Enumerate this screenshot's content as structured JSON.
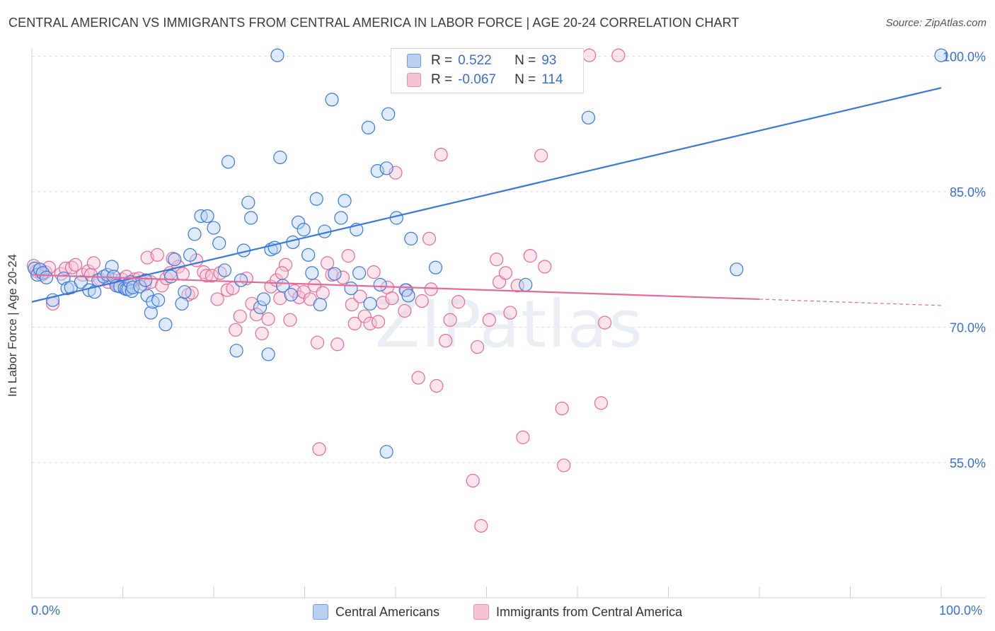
{
  "title": "CENTRAL AMERICAN VS IMMIGRANTS FROM CENTRAL AMERICA IN LABOR FORCE | AGE 20-24 CORRELATION CHART",
  "source": "Source: ZipAtlas.com",
  "watermark": "ZIPatlas",
  "legend": {
    "r_label": "R =",
    "n_label": "N =",
    "series1": {
      "r": "0.522",
      "n": "93"
    },
    "series2": {
      "r": "-0.067",
      "n": "114"
    }
  },
  "bottom_legend": {
    "series1": "Central Americans",
    "series2": "Immigrants from Central America"
  },
  "colors": {
    "blue": "#3a78d8",
    "blue_fill": "#b9d0f3",
    "pink": "#e46a9a",
    "pink_fill": "#f6c3d5",
    "axis_text": "#3a6fd0"
  },
  "chart_data": {
    "type": "scatter",
    "title": "CENTRAL AMERICAN VS IMMIGRANTS FROM CENTRAL AMERICA IN LABOR FORCE | AGE 20-24 CORRELATION CHART",
    "xlabel": "",
    "ylabel": "In Labor Force | Age 20-24",
    "xlim": [
      0,
      100
    ],
    "ylim": [
      40,
      102
    ],
    "x_tick_labels": [
      "0.0%",
      "100.0%"
    ],
    "y_ticks": [
      55,
      70,
      85,
      100
    ],
    "y_tick_labels": [
      "55.0%",
      "70.0%",
      "85.0%",
      "100.0%"
    ],
    "grid": true,
    "legend_position": "top-center",
    "series": [
      {
        "name": "Central Americans",
        "color": "#3a78d8",
        "r": 0.522,
        "n": 93,
        "trend": {
          "x": [
            0,
            100
          ],
          "y": [
            72.8,
            96.5
          ]
        },
        "points": [
          [
            0.3,
            76.5
          ],
          [
            0.6,
            75.8
          ],
          [
            0.9,
            76.4
          ],
          [
            1.2,
            76.0
          ],
          [
            1.6,
            75.5
          ],
          [
            2.3,
            73.0
          ],
          [
            3.5,
            75.4
          ],
          [
            3.9,
            74.3
          ],
          [
            4.3,
            74.4
          ],
          [
            5.4,
            75.0
          ],
          [
            6.3,
            74.1
          ],
          [
            6.9,
            73.9
          ],
          [
            7.3,
            75.2
          ],
          [
            7.9,
            75.6
          ],
          [
            8.3,
            75.8
          ],
          [
            8.8,
            76.7
          ],
          [
            9.0,
            75.6
          ],
          [
            9.3,
            74.6
          ],
          [
            9.7,
            74.5
          ],
          [
            10.2,
            74.3
          ],
          [
            10.4,
            74.2
          ],
          [
            10.6,
            74.2
          ],
          [
            10.8,
            75.0
          ],
          [
            11.0,
            74.0
          ],
          [
            11.1,
            74.4
          ],
          [
            11.9,
            74.5
          ],
          [
            12.5,
            75.2
          ],
          [
            12.7,
            73.5
          ],
          [
            13.1,
            71.6
          ],
          [
            13.3,
            72.8
          ],
          [
            13.9,
            73.0
          ],
          [
            14.7,
            70.3
          ],
          [
            15.3,
            75.6
          ],
          [
            15.7,
            77.5
          ],
          [
            16.5,
            72.6
          ],
          [
            16.8,
            73.9
          ],
          [
            17.4,
            78.0
          ],
          [
            17.9,
            80.3
          ],
          [
            18.6,
            82.3
          ],
          [
            19.3,
            82.3
          ],
          [
            20.0,
            81.0
          ],
          [
            20.6,
            79.3
          ],
          [
            21.2,
            76.3
          ],
          [
            21.6,
            88.3
          ],
          [
            22.5,
            67.4
          ],
          [
            23.0,
            75.2
          ],
          [
            23.3,
            78.5
          ],
          [
            23.8,
            83.8
          ],
          [
            24.1,
            82.1
          ],
          [
            25.1,
            72.2
          ],
          [
            25.5,
            73.1
          ],
          [
            26.3,
            78.6
          ],
          [
            26.7,
            78.8
          ],
          [
            27.3,
            88.8
          ],
          [
            27.6,
            74.6
          ],
          [
            28.5,
            73.6
          ],
          [
            28.7,
            79.4
          ],
          [
            29.3,
            81.6
          ],
          [
            29.9,
            80.8
          ],
          [
            30.4,
            78.0
          ],
          [
            30.8,
            76.0
          ],
          [
            31.3,
            84.2
          ],
          [
            31.7,
            72.5
          ],
          [
            32.2,
            80.6
          ],
          [
            33.0,
            95.2
          ],
          [
            33.3,
            75.9
          ],
          [
            34.0,
            82.1
          ],
          [
            34.4,
            84.0
          ],
          [
            35.1,
            74.3
          ],
          [
            35.7,
            80.8
          ],
          [
            36.0,
            76.0
          ],
          [
            37.0,
            92.1
          ],
          [
            37.2,
            72.6
          ],
          [
            38.0,
            87.3
          ],
          [
            38.3,
            74.7
          ],
          [
            39.0,
            87.6
          ],
          [
            39.2,
            93.6
          ],
          [
            40.1,
            82.1
          ],
          [
            41.1,
            74.1
          ],
          [
            41.4,
            73.5
          ],
          [
            41.7,
            79.8
          ],
          [
            43.2,
            100.1
          ],
          [
            44.4,
            76.6
          ],
          [
            46.0,
            97.0
          ],
          [
            49.0,
            100.1
          ],
          [
            50.5,
            100.1
          ],
          [
            54.3,
            74.7
          ],
          [
            61.2,
            93.2
          ],
          [
            77.5,
            76.4
          ],
          [
            100.0,
            100.1
          ],
          [
            26.0,
            67.0
          ],
          [
            39.0,
            56.2
          ],
          [
            27.0,
            100.1
          ]
        ]
      },
      {
        "name": "Immigrants from Central America",
        "color": "#e46a9a",
        "r": -0.067,
        "n": 114,
        "trend": {
          "x": [
            0,
            80,
            100
          ],
          "y": [
            75.8,
            73.1,
            72.4
          ]
        },
        "points": [
          [
            0.2,
            76.8
          ],
          [
            0.5,
            76.2
          ],
          [
            0.8,
            76.3
          ],
          [
            1.1,
            75.8
          ],
          [
            1.5,
            76.1
          ],
          [
            1.9,
            76.6
          ],
          [
            2.3,
            72.6
          ],
          [
            3.2,
            75.9
          ],
          [
            3.7,
            76.5
          ],
          [
            4.4,
            76.6
          ],
          [
            4.8,
            76.9
          ],
          [
            5.6,
            75.8
          ],
          [
            6.2,
            76.2
          ],
          [
            6.5,
            75.8
          ],
          [
            6.8,
            77.1
          ],
          [
            7.5,
            75.3
          ],
          [
            8.4,
            75.0
          ],
          [
            9.0,
            75.2
          ],
          [
            9.5,
            74.6
          ],
          [
            9.9,
            75.3
          ],
          [
            10.4,
            75.6
          ],
          [
            11.0,
            75.0
          ],
          [
            11.3,
            75.3
          ],
          [
            11.8,
            75.4
          ],
          [
            12.4,
            74.7
          ],
          [
            12.7,
            77.7
          ],
          [
            13.1,
            75.0
          ],
          [
            13.8,
            78.0
          ],
          [
            14.3,
            74.6
          ],
          [
            14.8,
            75.4
          ],
          [
            15.2,
            76.0
          ],
          [
            15.5,
            77.6
          ],
          [
            16.1,
            76.7
          ],
          [
            16.6,
            75.9
          ],
          [
            17.2,
            73.6
          ],
          [
            17.6,
            73.8
          ],
          [
            18.1,
            77.4
          ],
          [
            18.9,
            76.1
          ],
          [
            19.2,
            75.7
          ],
          [
            19.8,
            75.7
          ],
          [
            20.4,
            73.1
          ],
          [
            20.7,
            76.0
          ],
          [
            21.5,
            74.1
          ],
          [
            22.1,
            74.3
          ],
          [
            22.4,
            69.7
          ],
          [
            22.9,
            71.2
          ],
          [
            23.6,
            75.4
          ],
          [
            24.2,
            72.6
          ],
          [
            24.7,
            71.4
          ],
          [
            25.3,
            69.3
          ],
          [
            26.0,
            70.9
          ],
          [
            26.3,
            74.5
          ],
          [
            26.9,
            75.2
          ],
          [
            27.3,
            73.2
          ],
          [
            27.9,
            76.9
          ],
          [
            28.4,
            70.8
          ],
          [
            28.9,
            74.0
          ],
          [
            29.4,
            73.3
          ],
          [
            29.9,
            73.9
          ],
          [
            30.6,
            73.1
          ],
          [
            31.1,
            74.6
          ],
          [
            31.4,
            68.3
          ],
          [
            32.0,
            73.8
          ],
          [
            32.5,
            77.1
          ],
          [
            33.0,
            75.8
          ],
          [
            33.6,
            68.1
          ],
          [
            34.2,
            75.5
          ],
          [
            34.8,
            77.9
          ],
          [
            35.2,
            72.5
          ],
          [
            35.5,
            70.4
          ],
          [
            36.1,
            73.4
          ],
          [
            36.6,
            71.2
          ],
          [
            37.2,
            70.4
          ],
          [
            37.6,
            76.1
          ],
          [
            38.1,
            70.6
          ],
          [
            38.6,
            72.7
          ],
          [
            39.1,
            74.4
          ],
          [
            39.6,
            73.2
          ],
          [
            40.0,
            87.1
          ],
          [
            41.0,
            71.8
          ],
          [
            41.2,
            74.1
          ],
          [
            42.5,
            64.4
          ],
          [
            42.9,
            72.9
          ],
          [
            43.7,
            79.8
          ],
          [
            43.9,
            74.2
          ],
          [
            44.5,
            63.5
          ],
          [
            45.0,
            89.1
          ],
          [
            45.5,
            68.5
          ],
          [
            46.0,
            70.8
          ],
          [
            46.9,
            72.8
          ],
          [
            47.8,
            100.1
          ],
          [
            48.5,
            53.0
          ],
          [
            49.0,
            67.8
          ],
          [
            49.4,
            48.0
          ],
          [
            50.3,
            70.8
          ],
          [
            51.1,
            77.5
          ],
          [
            51.4,
            75.0
          ],
          [
            52.1,
            76.0
          ],
          [
            52.6,
            71.6
          ],
          [
            53.4,
            74.6
          ],
          [
            54.8,
            77.9
          ],
          [
            56.0,
            89.0
          ],
          [
            56.4,
            76.7
          ],
          [
            58.3,
            61.0
          ],
          [
            58.5,
            54.7
          ],
          [
            59.0,
            100.1
          ],
          [
            61.3,
            100.1
          ],
          [
            62.6,
            61.6
          ],
          [
            63.0,
            70.5
          ],
          [
            64.5,
            100.1
          ],
          [
            31.6,
            56.5
          ],
          [
            54.0,
            57.8
          ],
          [
            46.5,
            100.1
          ],
          [
            27.5,
            76.0
          ]
        ]
      }
    ]
  }
}
